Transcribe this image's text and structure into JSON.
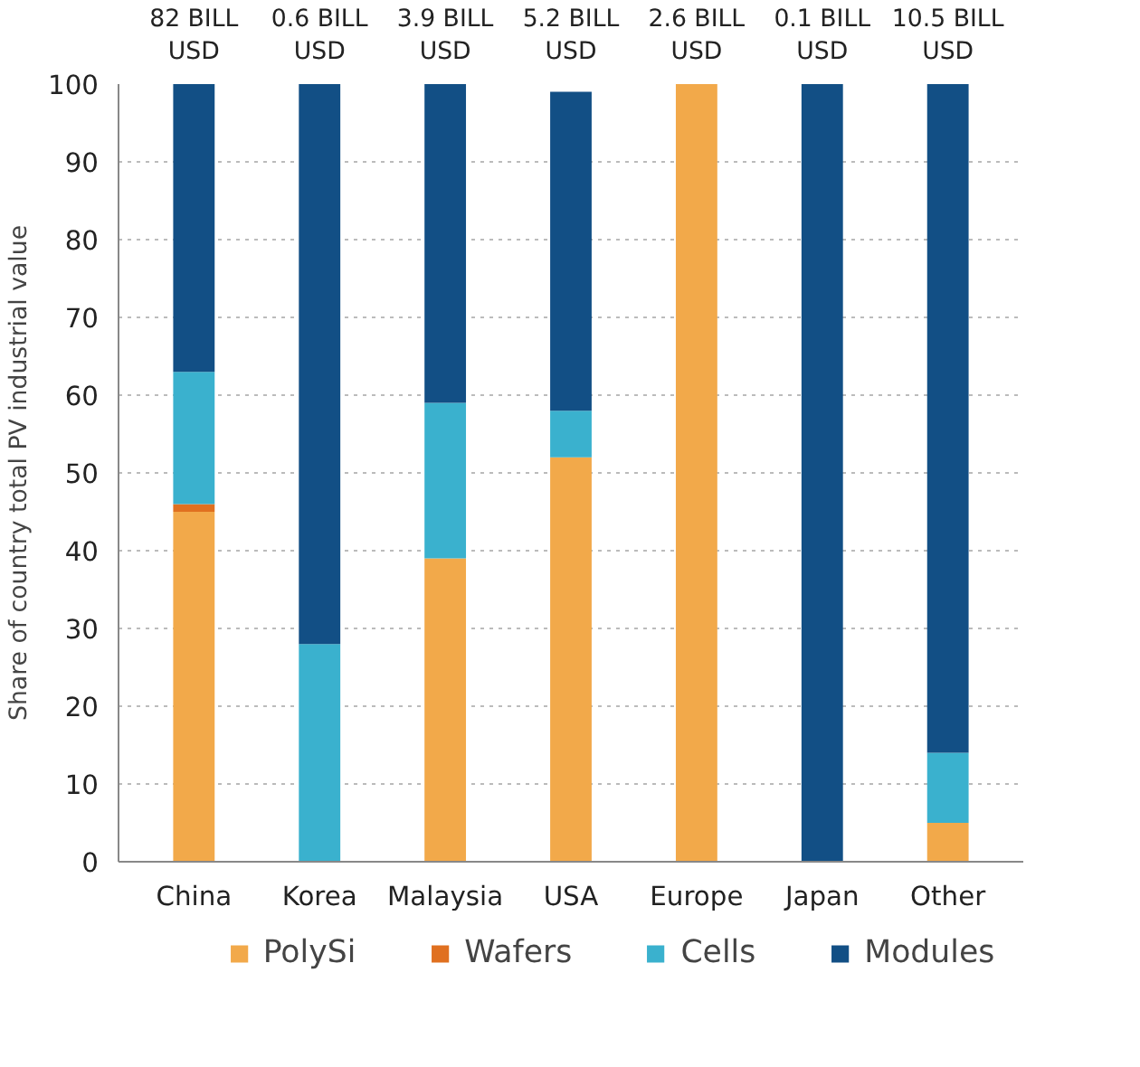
{
  "chart_data": {
    "type": "bar",
    "stacked": true,
    "ylabel": "Share of country total PV industrial value",
    "categories": [
      "China",
      "Korea",
      "Malaysia",
      "USA",
      "Europe",
      "Japan",
      "Other"
    ],
    "series": [
      {
        "name": "PolySi",
        "color": "#f2a94a",
        "values": [
          45,
          0,
          39,
          52,
          100,
          0,
          5
        ]
      },
      {
        "name": "Wafers",
        "color": "#e07020",
        "values": [
          1,
          0,
          0,
          0,
          0,
          0,
          0
        ]
      },
      {
        "name": "Cells",
        "color": "#3ab1ce",
        "values": [
          17,
          28,
          20,
          6,
          0,
          0,
          9
        ]
      },
      {
        "name": "Modules",
        "color": "#124f85",
        "values": [
          37,
          72,
          41,
          41,
          0,
          100,
          86
        ]
      }
    ],
    "ylim": [
      0,
      100
    ],
    "yticks": [
      0,
      10,
      20,
      30,
      40,
      50,
      60,
      70,
      80,
      90,
      100
    ],
    "grid": "y",
    "legend": "bottom",
    "annotations": [
      "82 BILL\nUSD",
      "0.6 BILL\nUSD",
      "3.9 BILL\nUSD",
      "5.2 BILL\nUSD",
      "2.6 BILL\nUSD",
      "0.1 BILL\nUSD",
      "10.5 BILL\nUSD"
    ]
  }
}
